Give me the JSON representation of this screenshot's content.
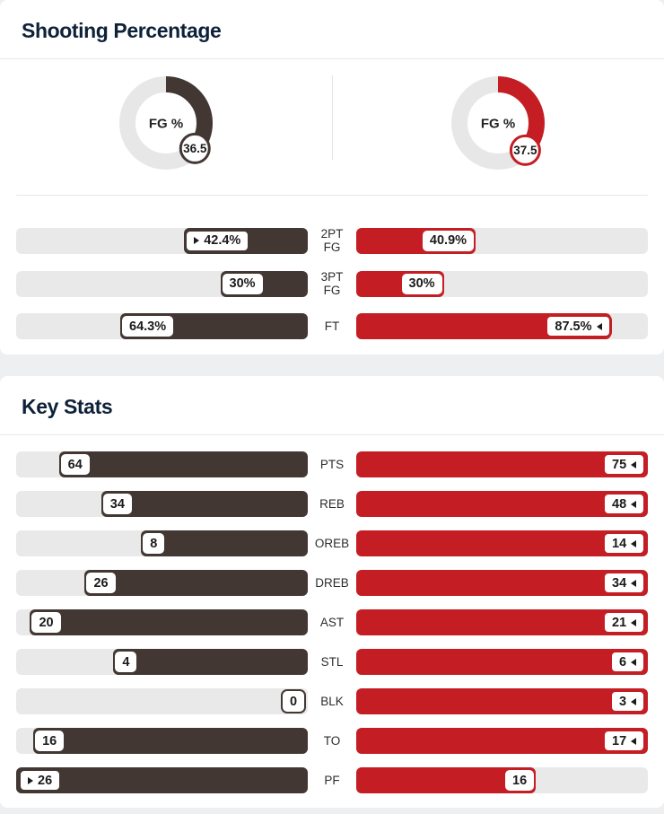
{
  "colors": {
    "left_team": "#423733",
    "right_team": "#c41e24",
    "bar_track": "#e9e9e9",
    "donut_track": "#e7e7e7",
    "title_text": "#0d2138",
    "badge_text": "#1b1b1b"
  },
  "shooting": {
    "title": "Shooting Percentage",
    "donuts": [
      {
        "side": "left",
        "label": "FG %",
        "display": "36.5",
        "value": 36.5
      },
      {
        "side": "right",
        "label": "FG %",
        "display": "37.5",
        "value": 37.5
      }
    ],
    "rows": [
      {
        "label_lines": [
          "2PT",
          "FG"
        ],
        "left_display": "42.4%",
        "left_value": 42.4,
        "right_display": "40.9%",
        "right_value": 40.9
      },
      {
        "label_lines": [
          "3PT",
          "FG"
        ],
        "left_display": "30%",
        "left_value": 30,
        "right_display": "30%",
        "right_value": 30
      },
      {
        "label_lines": [
          "FT"
        ],
        "left_display": "64.3%",
        "left_value": 64.3,
        "right_display": "87.5%",
        "right_value": 87.5
      }
    ]
  },
  "key_stats": {
    "title": "Key Stats",
    "rows": [
      {
        "label": "PTS",
        "left_display": "64",
        "left_value": 64,
        "right_display": "75",
        "right_value": 75
      },
      {
        "label": "REB",
        "left_display": "34",
        "left_value": 34,
        "right_display": "48",
        "right_value": 48
      },
      {
        "label": "OREB",
        "left_display": "8",
        "left_value": 8,
        "right_display": "14",
        "right_value": 14
      },
      {
        "label": "DREB",
        "left_display": "26",
        "left_value": 26,
        "right_display": "34",
        "right_value": 34
      },
      {
        "label": "AST",
        "left_display": "20",
        "left_value": 20,
        "right_display": "21",
        "right_value": 21
      },
      {
        "label": "STL",
        "left_display": "4",
        "left_value": 4,
        "right_display": "6",
        "right_value": 6
      },
      {
        "label": "BLK",
        "left_display": "0",
        "left_value": 0,
        "right_display": "3",
        "right_value": 3
      },
      {
        "label": "TO",
        "left_display": "16",
        "left_value": 16,
        "right_display": "17",
        "right_value": 17
      },
      {
        "label": "PF",
        "left_display": "26",
        "left_value": 26,
        "right_display": "16",
        "right_value": 16
      }
    ]
  },
  "chart_data": [
    {
      "type": "pie",
      "subtype": "donut-gauge",
      "title": "FG %",
      "series": [
        {
          "name": "left-team FG%",
          "value": 36.5
        },
        {
          "name": "right-team FG%",
          "value": 37.5
        }
      ],
      "unit": "%",
      "range": [
        0,
        100
      ]
    },
    {
      "type": "bar",
      "title": "Shooting Percentage",
      "categories": [
        "2PT FG",
        "3PT FG",
        "FT"
      ],
      "series": [
        {
          "name": "left-team",
          "values": [
            42.4,
            30,
            64.3
          ]
        },
        {
          "name": "right-team",
          "values": [
            40.9,
            30,
            87.5
          ]
        }
      ],
      "unit": "%",
      "xlim": [
        0,
        100
      ],
      "layout": "opposing horizontal bars, labels centered, arrow marks row leader"
    },
    {
      "type": "bar",
      "title": "Key Stats",
      "categories": [
        "PTS",
        "REB",
        "OREB",
        "DREB",
        "AST",
        "STL",
        "BLK",
        "TO",
        "PF"
      ],
      "series": [
        {
          "name": "left-team",
          "values": [
            64,
            34,
            8,
            26,
            20,
            4,
            0,
            16,
            26
          ]
        },
        {
          "name": "right-team",
          "values": [
            75,
            48,
            14,
            34,
            21,
            6,
            3,
            17,
            16
          ]
        }
      ],
      "layout": "opposing horizontal bars scaled to row max, arrow marks row leader"
    }
  ]
}
